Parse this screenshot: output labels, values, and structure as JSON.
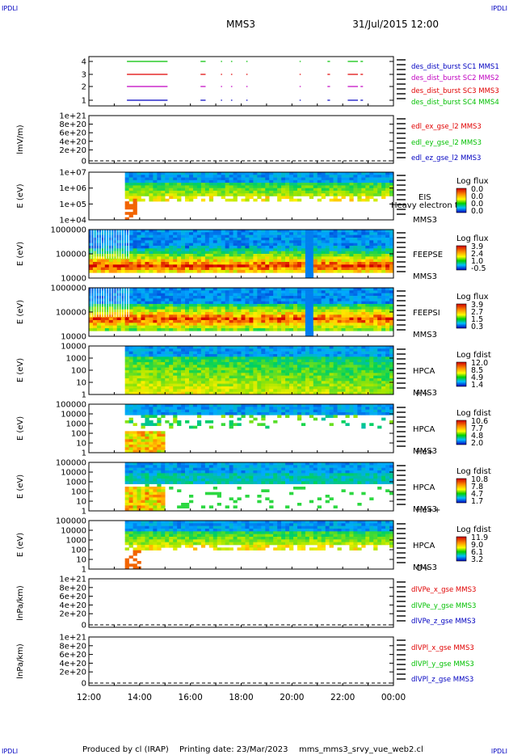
{
  "header": {
    "corner_label": "IPDLI",
    "title": "MMS3",
    "date": "31/Jul/2015 12:00"
  },
  "footer": {
    "produced_by": "Produced by  cl (IRAP)",
    "printing_date": "Printing date: 23/Mar/2023",
    "script_name": "mms_mms3_srvy_vue_web2.cl"
  },
  "chart_data": {
    "type": "heatmap",
    "x": {
      "range": [
        "12:00",
        "00:00"
      ],
      "tick_labels": [
        "12:00",
        "14:00",
        "16:00",
        "18:00",
        "20:00",
        "22:00",
        "00:00"
      ]
    },
    "colors": {
      "red": "#e00000",
      "green": "#00c000",
      "blue": "#0000c0",
      "magenta": "#c000c0"
    },
    "panels": [
      {
        "kind": "burst",
        "yticks": [
          "4",
          "3",
          "2",
          "1"
        ],
        "legend": [
          {
            "text": "des_dist_burst SC1 MMS1",
            "color": "#0000c0"
          },
          {
            "text": "des_dist_burst SC2 MMS2",
            "color": "#c000c0"
          },
          {
            "text": "des_dist_burst SC3 MMS3",
            "color": "#e00000"
          },
          {
            "text": "des_dist_burst SC4 MMS4",
            "color": "#00c000"
          }
        ],
        "segments_hours": [
          [
            13.5,
            15.1
          ],
          [
            16.4,
            16.6
          ],
          [
            17.2,
            17.25
          ],
          [
            17.6,
            17.65
          ],
          [
            18.2,
            18.25
          ],
          [
            20.3,
            20.35
          ],
          [
            21.4,
            21.5
          ],
          [
            22.2,
            22.6
          ],
          [
            22.7,
            22.8
          ]
        ]
      },
      {
        "kind": "line",
        "ylabel": "lmV/m)",
        "yticks": [
          "1e+21",
          "8e+20",
          "6e+20",
          "4e+20",
          "2e+20",
          "0"
        ],
        "legend": [
          {
            "text": "edl_ex_gse_l2 MMS3",
            "color": "#e00000"
          },
          {
            "text": "edl_ey_gse_l2 MMS3",
            "color": "#00c000"
          },
          {
            "text": "edl_ez_gse_l2 MMS3",
            "color": "#0000c0"
          }
        ]
      },
      {
        "kind": "spectrogram",
        "ylabel": "E (eV)",
        "yticks": [
          "1e+07",
          "1e+06",
          "1e+05",
          "1e+04"
        ],
        "side_labels": [
          "EIS",
          "Heavy electron to",
          "MMS3"
        ],
        "colorbar": {
          "label": "Log flux",
          "ticks": [
            "0.0",
            "0.0",
            "0.0",
            "0.0"
          ]
        }
      },
      {
        "kind": "spectrogram",
        "ylabel": "E (eV)",
        "yticks": [
          "1000000",
          "100000",
          "10000"
        ],
        "side_labels": [
          "FEEPSE",
          "MMS3"
        ],
        "colorbar": {
          "label": "Log flux",
          "ticks": [
            "3.9",
            "2.4",
            "1.0",
            "-0.5"
          ]
        }
      },
      {
        "kind": "spectrogram",
        "ylabel": "E (eV)",
        "yticks": [
          "1000000",
          "100000",
          "10000"
        ],
        "side_labels": [
          "FEEPSI",
          "MMS3"
        ],
        "colorbar": {
          "label": "Log flux",
          "ticks": [
            "3.9",
            "2.7",
            "1.5",
            "0.3"
          ]
        }
      },
      {
        "kind": "spectrogram",
        "ylabel": "E (eV)",
        "yticks": [
          "10000",
          "1000",
          "100",
          "10",
          "1"
        ],
        "side_labels": [
          "HPCA",
          "MMS3"
        ],
        "species": "H+",
        "colorbar": {
          "label": "Log fdist",
          "ticks": [
            "12.0",
            "8.5",
            "4.9",
            "1.4"
          ]
        }
      },
      {
        "kind": "spectrogram",
        "ylabel": "E (eV)",
        "yticks": [
          "100000",
          "10000",
          "1000",
          "100",
          "10",
          "1"
        ],
        "side_labels": [
          "HPCA",
          "MMS3"
        ],
        "species": "He+",
        "colorbar": {
          "label": "Log fdist",
          "ticks": [
            "10.6",
            "7.7",
            "4.8",
            "2.0"
          ]
        }
      },
      {
        "kind": "spectrogram",
        "ylabel": "E (eV)",
        "yticks": [
          "100000",
          "10000",
          "1000",
          "100",
          "10",
          "1"
        ],
        "side_labels": [
          "HPCA",
          "MMS3"
        ],
        "species": "He++",
        "colorbar": {
          "label": "Log fdist",
          "ticks": [
            "10.8",
            "7.8",
            "4.7",
            "1.7"
          ]
        }
      },
      {
        "kind": "spectrogram",
        "ylabel": "E (eV)",
        "yticks": [
          "100000",
          "10000",
          "1000",
          "100",
          "10",
          "1"
        ],
        "side_labels": [
          "HPCA",
          "MMS3"
        ],
        "species": "O+",
        "colorbar": {
          "label": "Log fdist",
          "ticks": [
            "11.9",
            "9.0",
            "6.1",
            "3.2"
          ]
        }
      },
      {
        "kind": "line",
        "ylabel": "lnPa/km)",
        "yticks": [
          "1e+21",
          "8e+20",
          "6e+20",
          "4e+20",
          "2e+20",
          "0"
        ],
        "legend": [
          {
            "text": "dlVPe_x_gse MMS3",
            "color": "#e00000"
          },
          {
            "text": "dlVPe_y_gse MMS3",
            "color": "#00c000"
          },
          {
            "text": "dlVPe_z_gse MMS3",
            "color": "#0000c0"
          }
        ]
      },
      {
        "kind": "line",
        "ylabel": "lnPa/km)",
        "yticks": [
          "1e+21",
          "8e+20",
          "6e+20",
          "4e+20",
          "2e+20",
          "0"
        ],
        "legend": [
          {
            "text": "dlVPl_x_gse MMS3",
            "color": "#e00000"
          },
          {
            "text": "dlVPl_y_gse MMS3",
            "color": "#00c000"
          },
          {
            "text": "dlVPl_z_gse MMS3",
            "color": "#0000c0"
          }
        ]
      }
    ]
  }
}
